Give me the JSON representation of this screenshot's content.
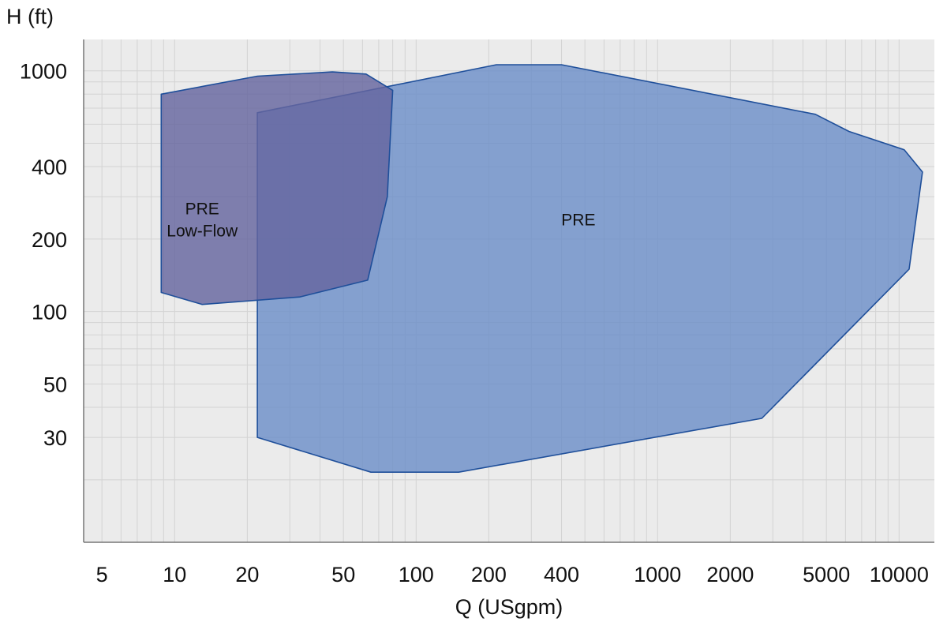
{
  "chart_data": {
    "type": "area",
    "xlabel": "Q (USgpm)",
    "ylabel": "H (ft)",
    "xscale": "log",
    "yscale": "log",
    "xlim": [
      4.2,
      14000
    ],
    "ylim": [
      11,
      1350
    ],
    "xticks": [
      5,
      10,
      20,
      50,
      100,
      200,
      400,
      1000,
      2000,
      5000,
      10000
    ],
    "xtick_labels": [
      "5",
      "10",
      "20",
      "50",
      "100",
      "200",
      "400",
      "1000",
      "2000",
      "5000",
      "10000"
    ],
    "yticks": [
      30,
      50,
      100,
      200,
      400,
      1000
    ],
    "ytick_labels": [
      "30",
      "50",
      "100",
      "200",
      "400",
      "1000"
    ],
    "grid": true,
    "series": [
      {
        "name": "PRE",
        "label_lines": [
          "PRE"
        ],
        "label_at": [
          470,
          240
        ],
        "color": "#6d8fc8",
        "points": [
          [
            22,
            670
          ],
          [
            215,
            1060
          ],
          [
            400,
            1060
          ],
          [
            4500,
            660
          ],
          [
            6200,
            560
          ],
          [
            10500,
            470
          ],
          [
            12500,
            380
          ],
          [
            11000,
            150
          ],
          [
            2700,
            36
          ],
          [
            150,
            21.5
          ],
          [
            65,
            21.5
          ],
          [
            22,
            30
          ]
        ]
      },
      {
        "name": "PRE Low-Flow",
        "label_lines": [
          "PRE",
          "Low-Flow"
        ],
        "label_at": [
          13,
          240
        ],
        "color": "#65659f",
        "points": [
          [
            8.8,
            800
          ],
          [
            22,
            950
          ],
          [
            45,
            990
          ],
          [
            62,
            970
          ],
          [
            80,
            830
          ],
          [
            76,
            300
          ],
          [
            63,
            135
          ],
          [
            33,
            115
          ],
          [
            13,
            107
          ],
          [
            8.8,
            120
          ]
        ]
      }
    ]
  }
}
